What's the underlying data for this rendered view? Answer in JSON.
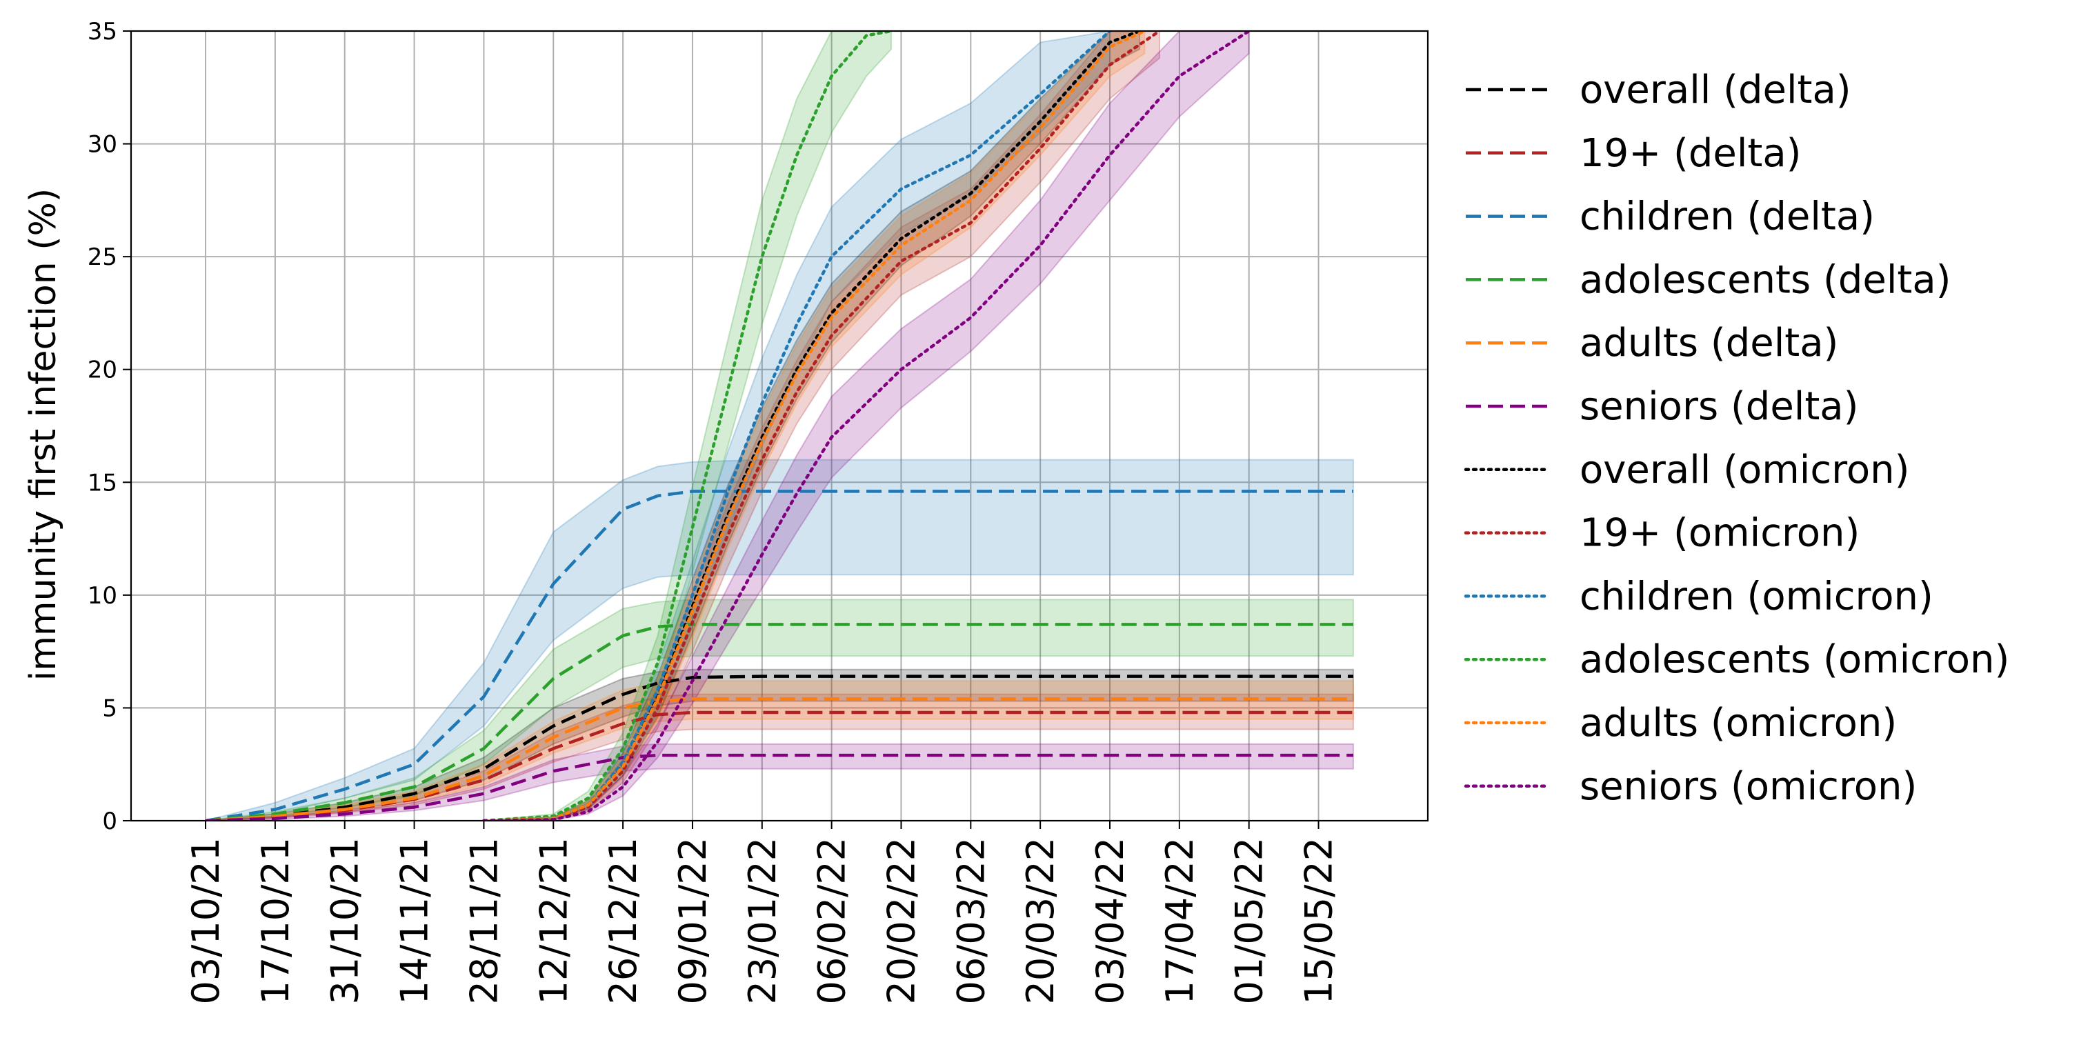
{
  "chart_data": {
    "type": "line",
    "ylabel": "immunity first infection (%)",
    "xlabel": "",
    "ylim": [
      0,
      35
    ],
    "yticks": [
      0,
      5,
      10,
      15,
      20,
      25,
      30,
      35
    ],
    "xlim": [
      "2021-09-18",
      "2022-06-06"
    ],
    "xticks": [
      {
        "date": "2021-10-03",
        "label": "03/10/21"
      },
      {
        "date": "2021-10-17",
        "label": "17/10/21"
      },
      {
        "date": "2021-10-31",
        "label": "31/10/21"
      },
      {
        "date": "2021-11-14",
        "label": "14/11/21"
      },
      {
        "date": "2021-11-28",
        "label": "28/11/21"
      },
      {
        "date": "2021-12-12",
        "label": "12/12/21"
      },
      {
        "date": "2021-12-26",
        "label": "26/12/21"
      },
      {
        "date": "2022-01-09",
        "label": "09/01/22"
      },
      {
        "date": "2022-01-23",
        "label": "23/01/22"
      },
      {
        "date": "2022-02-06",
        "label": "06/02/22"
      },
      {
        "date": "2022-02-20",
        "label": "20/02/22"
      },
      {
        "date": "2022-03-06",
        "label": "06/03/22"
      },
      {
        "date": "2022-03-20",
        "label": "20/03/22"
      },
      {
        "date": "2022-04-03",
        "label": "03/04/22"
      },
      {
        "date": "2022-04-17",
        "label": "17/04/22"
      },
      {
        "date": "2022-05-01",
        "label": "01/05/22"
      },
      {
        "date": "2022-05-15",
        "label": "15/05/22"
      }
    ],
    "grid": true,
    "legend_position": "outside-right",
    "series": [
      {
        "name": "overall (delta)",
        "color": "#000000",
        "style": "dashed",
        "x": [
          "2021-10-03",
          "2021-10-17",
          "2021-10-31",
          "2021-11-14",
          "2021-11-28",
          "2021-12-12",
          "2021-12-26",
          "2022-01-02",
          "2022-01-09",
          "2022-01-23",
          "2022-05-22"
        ],
        "y": [
          0,
          0.2,
          0.6,
          1.2,
          2.3,
          4.2,
          5.6,
          6.1,
          6.35,
          6.4,
          6.4
        ],
        "band_low": [
          0,
          0.15,
          0.45,
          0.9,
          1.8,
          3.4,
          4.6,
          5.1,
          5.3,
          5.3,
          5.3
        ],
        "band_high": [
          0,
          0.3,
          0.8,
          1.5,
          2.8,
          5.0,
          6.3,
          6.6,
          6.7,
          6.7,
          6.7
        ]
      },
      {
        "name": "19+ (delta)",
        "color": "#b22222",
        "style": "dashed",
        "x": [
          "2021-10-03",
          "2021-10-17",
          "2021-10-31",
          "2021-11-14",
          "2021-11-28",
          "2021-12-12",
          "2021-12-26",
          "2022-01-02",
          "2022-01-09",
          "2022-01-23",
          "2022-05-22"
        ],
        "y": [
          0,
          0.15,
          0.45,
          0.95,
          1.8,
          3.2,
          4.3,
          4.7,
          4.8,
          4.8,
          4.8
        ],
        "band_low": [
          0,
          0.1,
          0.35,
          0.7,
          1.4,
          2.6,
          3.6,
          3.95,
          4.05,
          4.05,
          4.05
        ],
        "band_high": [
          0,
          0.2,
          0.6,
          1.2,
          2.2,
          3.9,
          5.1,
          5.5,
          5.6,
          5.6,
          5.6
        ]
      },
      {
        "name": "children (delta)",
        "color": "#1f77b4",
        "style": "dashed",
        "x": [
          "2021-10-03",
          "2021-10-17",
          "2021-10-31",
          "2021-11-14",
          "2021-11-28",
          "2021-12-12",
          "2021-12-26",
          "2022-01-02",
          "2022-01-09",
          "2022-01-23",
          "2022-05-22"
        ],
        "y": [
          0,
          0.5,
          1.4,
          2.5,
          5.5,
          10.5,
          13.8,
          14.4,
          14.6,
          14.6,
          14.6
        ],
        "band_low": [
          0,
          0.3,
          1.0,
          1.8,
          4.2,
          8.0,
          10.3,
          10.8,
          10.9,
          10.9,
          10.9
        ],
        "band_high": [
          0,
          0.8,
          1.9,
          3.2,
          7.0,
          12.8,
          15.1,
          15.7,
          15.9,
          16.0,
          16.0
        ]
      },
      {
        "name": "adolescents (delta)",
        "color": "#2ca02c",
        "style": "dashed",
        "x": [
          "2021-10-03",
          "2021-10-17",
          "2021-10-31",
          "2021-11-14",
          "2021-11-28",
          "2021-12-12",
          "2021-12-26",
          "2022-01-02",
          "2022-01-09",
          "2022-01-23",
          "2022-05-22"
        ],
        "y": [
          0,
          0.3,
          0.8,
          1.5,
          3.2,
          6.3,
          8.2,
          8.6,
          8.7,
          8.7,
          8.7
        ],
        "band_low": [
          0,
          0.2,
          0.6,
          1.1,
          2.5,
          5.0,
          6.8,
          7.2,
          7.3,
          7.3,
          7.3
        ],
        "band_high": [
          0,
          0.4,
          1.0,
          1.9,
          4.0,
          7.6,
          9.4,
          9.7,
          9.8,
          9.8,
          9.8
        ]
      },
      {
        "name": "adults (delta)",
        "color": "#ff7f0e",
        "style": "dashed",
        "x": [
          "2021-10-03",
          "2021-10-17",
          "2021-10-31",
          "2021-11-14",
          "2021-11-28",
          "2021-12-12",
          "2021-12-26",
          "2022-01-02",
          "2022-01-09",
          "2022-01-23",
          "2022-05-22"
        ],
        "y": [
          0,
          0.2,
          0.5,
          1.0,
          2.0,
          3.7,
          5.0,
          5.3,
          5.4,
          5.4,
          5.4
        ],
        "band_low": [
          0,
          0.15,
          0.4,
          0.8,
          1.6,
          3.0,
          4.1,
          4.4,
          4.5,
          4.5,
          4.5
        ],
        "band_high": [
          0,
          0.3,
          0.7,
          1.3,
          2.5,
          4.4,
          5.8,
          6.1,
          6.2,
          6.2,
          6.2
        ]
      },
      {
        "name": "seniors (delta)",
        "color": "#800080",
        "style": "dashed",
        "x": [
          "2021-10-03",
          "2021-10-17",
          "2021-10-31",
          "2021-11-14",
          "2021-11-28",
          "2021-12-12",
          "2021-12-26",
          "2022-01-02",
          "2022-01-09",
          "2022-01-23",
          "2022-05-22"
        ],
        "y": [
          0,
          0.1,
          0.3,
          0.6,
          1.2,
          2.2,
          2.8,
          2.9,
          2.9,
          2.9,
          2.9
        ],
        "band_low": [
          0,
          0.05,
          0.2,
          0.45,
          0.9,
          1.7,
          2.2,
          2.3,
          2.3,
          2.3,
          2.3
        ],
        "band_high": [
          0,
          0.15,
          0.4,
          0.8,
          1.5,
          2.7,
          3.3,
          3.4,
          3.4,
          3.4,
          3.4
        ]
      },
      {
        "name": "overall (omicron)",
        "color": "#000000",
        "style": "dotted",
        "x": [
          "2021-11-28",
          "2021-12-12",
          "2021-12-19",
          "2021-12-26",
          "2022-01-02",
          "2022-01-09",
          "2022-01-16",
          "2022-01-23",
          "2022-01-30",
          "2022-02-06",
          "2022-02-20",
          "2022-03-06",
          "2022-03-20",
          "2022-04-03",
          "2022-04-09"
        ],
        "y": [
          0,
          0.1,
          0.7,
          2.5,
          5.5,
          9.5,
          13.5,
          17.0,
          20.0,
          22.5,
          25.8,
          27.8,
          31.0,
          34.5,
          35.0
        ],
        "band_low": [
          0,
          0.05,
          0.5,
          2.0,
          4.6,
          8.3,
          12.2,
          15.7,
          18.7,
          21.2,
          24.6,
          26.8,
          30.0,
          33.5,
          34.2
        ],
        "band_high": [
          0,
          0.15,
          0.9,
          3.0,
          6.4,
          10.7,
          14.8,
          18.3,
          21.3,
          23.8,
          27.0,
          28.8,
          32.0,
          35.0,
          35.0
        ]
      },
      {
        "name": "19+ (omicron)",
        "color": "#b22222",
        "style": "dotted",
        "x": [
          "2021-11-28",
          "2021-12-12",
          "2021-12-19",
          "2021-12-26",
          "2022-01-02",
          "2022-01-09",
          "2022-01-16",
          "2022-01-23",
          "2022-01-30",
          "2022-02-06",
          "2022-02-20",
          "2022-03-06",
          "2022-03-20",
          "2022-04-03",
          "2022-04-13"
        ],
        "y": [
          0,
          0.1,
          0.6,
          2.2,
          5.0,
          8.8,
          12.6,
          16.0,
          19.0,
          21.5,
          24.8,
          26.5,
          29.8,
          33.5,
          35.0
        ],
        "band_low": [
          0,
          0.05,
          0.4,
          1.7,
          4.1,
          7.5,
          11.2,
          14.6,
          17.6,
          20.0,
          23.3,
          25.0,
          28.3,
          32.0,
          33.8
        ],
        "band_high": [
          0,
          0.15,
          0.8,
          2.7,
          5.9,
          10.1,
          14.0,
          17.4,
          20.4,
          23.0,
          26.3,
          28.0,
          31.3,
          35.0,
          35.0
        ]
      },
      {
        "name": "children (omicron)",
        "color": "#1f77b4",
        "style": "dotted",
        "x": [
          "2021-11-28",
          "2021-12-12",
          "2021-12-19",
          "2021-12-26",
          "2022-01-02",
          "2022-01-09",
          "2022-01-16",
          "2022-01-23",
          "2022-01-30",
          "2022-02-06",
          "2022-02-20",
          "2022-03-06",
          "2022-03-20",
          "2022-04-03"
        ],
        "y": [
          0,
          0.1,
          0.7,
          2.6,
          5.8,
          10.0,
          14.5,
          18.5,
          22.0,
          25.0,
          28.0,
          29.5,
          32.2,
          35.0
        ],
        "band_low": [
          0,
          0.05,
          0.5,
          2.0,
          4.8,
          8.6,
          12.8,
          16.6,
          20.0,
          23.0,
          26.0,
          27.7,
          30.5,
          33.5
        ],
        "band_high": [
          0,
          0.15,
          0.9,
          3.2,
          6.8,
          11.5,
          16.3,
          20.5,
          24.2,
          27.2,
          30.2,
          31.8,
          34.5,
          35.0
        ]
      },
      {
        "name": "adolescents (omicron)",
        "color": "#2ca02c",
        "style": "dotted",
        "x": [
          "2021-11-28",
          "2021-12-12",
          "2021-12-19",
          "2021-12-26",
          "2022-01-02",
          "2022-01-09",
          "2022-01-16",
          "2022-01-23",
          "2022-01-30",
          "2022-02-06",
          "2022-02-13",
          "2022-02-18"
        ],
        "y": [
          0,
          0.2,
          1.0,
          3.2,
          7.0,
          13.0,
          19.0,
          25.0,
          29.5,
          33.0,
          34.8,
          35.0
        ],
        "band_low": [
          0,
          0.1,
          0.7,
          2.5,
          5.8,
          11.0,
          16.5,
          22.0,
          26.8,
          30.5,
          33.0,
          34.2
        ],
        "band_high": [
          0,
          0.3,
          1.3,
          3.9,
          8.2,
          14.8,
          21.2,
          27.5,
          32.0,
          35.0,
          35.0,
          35.0
        ]
      },
      {
        "name": "adults (omicron)",
        "color": "#ff7f0e",
        "style": "dotted",
        "x": [
          "2021-11-28",
          "2021-12-12",
          "2021-12-19",
          "2021-12-26",
          "2022-01-02",
          "2022-01-09",
          "2022-01-16",
          "2022-01-23",
          "2022-01-30",
          "2022-02-06",
          "2022-02-20",
          "2022-03-06",
          "2022-03-20",
          "2022-04-03",
          "2022-04-10"
        ],
        "y": [
          0,
          0.1,
          0.7,
          2.4,
          5.4,
          9.3,
          13.3,
          16.8,
          19.8,
          22.3,
          25.5,
          27.5,
          30.7,
          34.3,
          35.0
        ],
        "band_low": [
          0,
          0.05,
          0.5,
          1.9,
          4.5,
          8.1,
          12.0,
          15.5,
          18.5,
          21.0,
          24.2,
          26.3,
          29.5,
          33.0,
          34.0
        ],
        "band_high": [
          0,
          0.15,
          0.9,
          2.9,
          6.3,
          10.5,
          14.6,
          18.1,
          21.1,
          23.6,
          26.8,
          28.7,
          31.9,
          35.0,
          35.0
        ]
      },
      {
        "name": "seniors (omicron)",
        "color": "#800080",
        "style": "dotted",
        "x": [
          "2021-11-28",
          "2021-12-12",
          "2021-12-19",
          "2021-12-26",
          "2022-01-02",
          "2022-01-09",
          "2022-01-16",
          "2022-01-23",
          "2022-01-30",
          "2022-02-06",
          "2022-02-20",
          "2022-03-06",
          "2022-03-20",
          "2022-04-03",
          "2022-04-17",
          "2022-05-01"
        ],
        "y": [
          0,
          0.05,
          0.4,
          1.5,
          3.5,
          6.2,
          9.0,
          11.8,
          14.5,
          17.0,
          20.0,
          22.3,
          25.5,
          29.5,
          33.0,
          35.0
        ],
        "band_low": [
          0,
          0.02,
          0.3,
          1.1,
          2.8,
          5.2,
          7.8,
          10.3,
          12.8,
          15.2,
          18.3,
          20.8,
          23.8,
          27.5,
          31.2,
          34.0
        ],
        "band_high": [
          0,
          0.08,
          0.6,
          2.0,
          4.3,
          7.3,
          10.3,
          13.3,
          16.2,
          18.8,
          21.8,
          24.0,
          27.5,
          31.8,
          35.0,
          35.0
        ]
      }
    ]
  }
}
